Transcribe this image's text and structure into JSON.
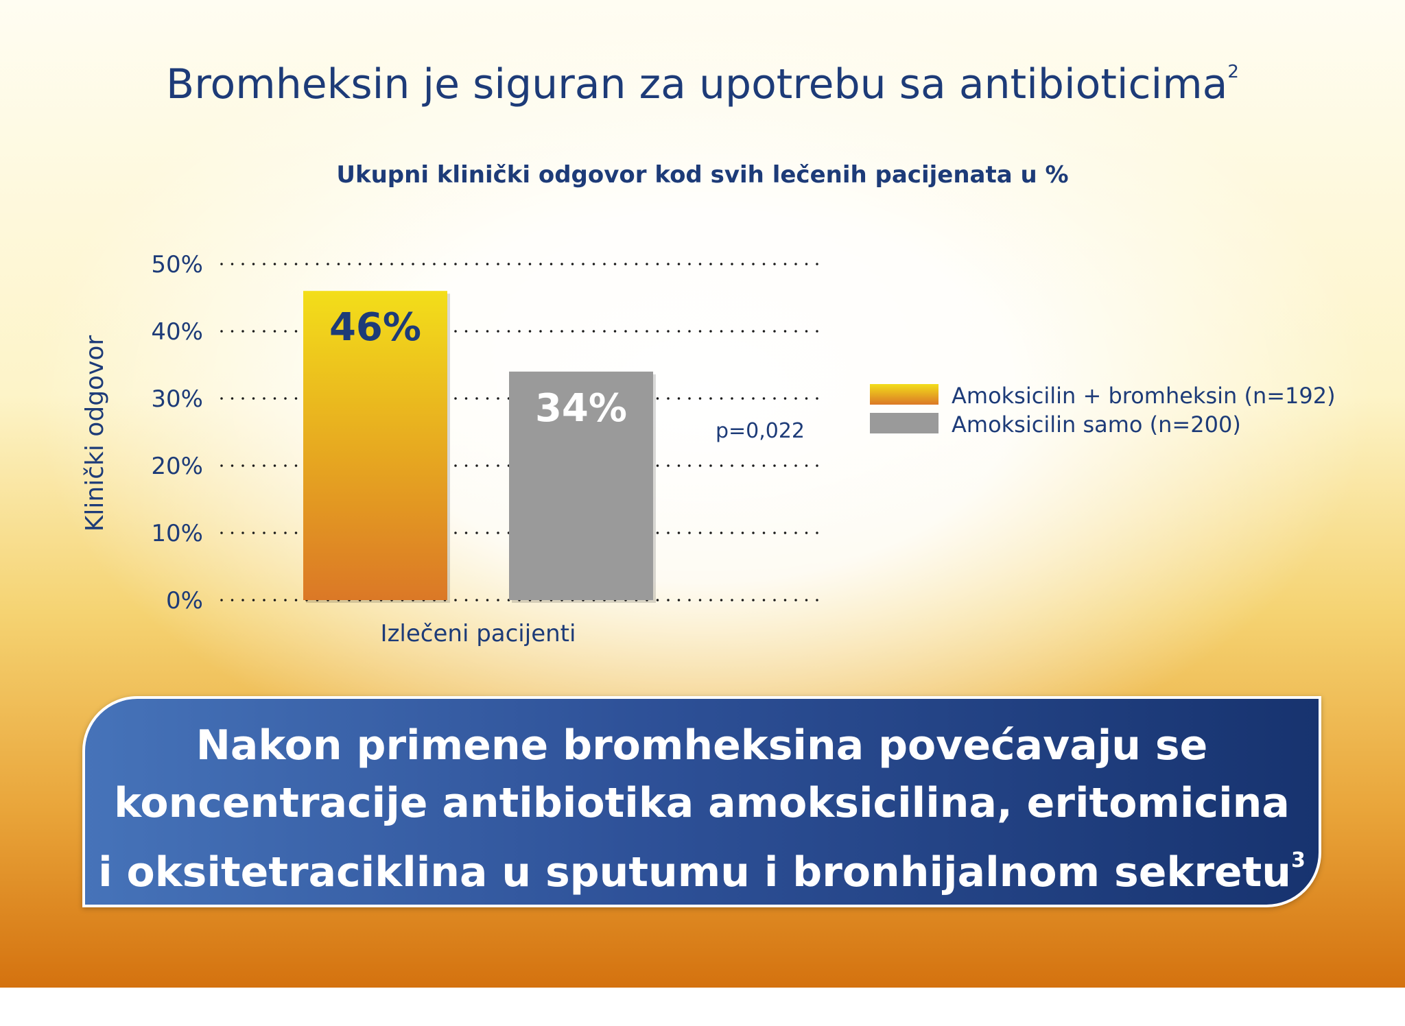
{
  "title": "Bromheksin je siguran za upotrebu sa antibioticima",
  "title_ref": "2",
  "chart_data": {
    "type": "bar",
    "title": "Ukupni klinički odgovor kod svih lečenih pacijenata u %",
    "xlabel": "Izlečeni pacijenti",
    "ylabel": "Klinički odgovor",
    "categories": [
      "Izlečeni pacijenti"
    ],
    "series": [
      {
        "name": "Amoksicilin + bromheksin (n=192)",
        "values": [
          46
        ],
        "label": "46%",
        "color_top": "#f3de1a",
        "color_bottom": "#db7826",
        "label_color": "#1d3b78"
      },
      {
        "name": "Amoksicilin samo (n=200)",
        "values": [
          34
        ],
        "label": "34%",
        "color_top": "#9a9a9a",
        "color_bottom": "#9a9a9a",
        "label_color": "#ffffff"
      }
    ],
    "yticks": [
      "0%",
      "10%",
      "20%",
      "30%",
      "40%",
      "50%"
    ],
    "ylim": [
      0,
      50
    ],
    "grid": true,
    "gridstyle": "dotted",
    "annotations": [
      "p=0,022"
    ],
    "legend_position": "right"
  },
  "colors": {
    "navy": "#1d3b78",
    "box_left": "#4673b9",
    "box_right": "#17336f"
  },
  "bottom_box": {
    "lines": [
      "Nakon primene bromheksina povećavaju se",
      "koncentracije antibiotika amoksicilina, eritomicina",
      "i oksitetraciklina u sputumu i bronhijalnom sekretu"
    ],
    "ref": "3"
  }
}
